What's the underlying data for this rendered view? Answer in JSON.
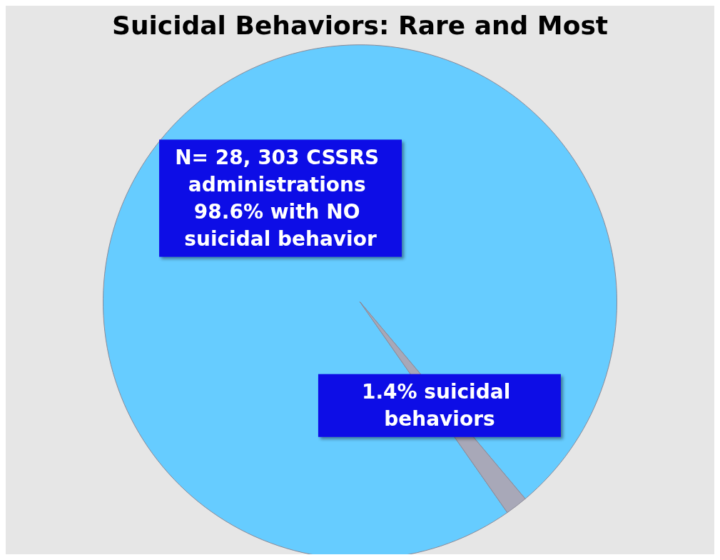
{
  "chart_data": {
    "type": "pie",
    "title": "Suicidal Behaviors: Rare and Most",
    "categories": [
      "N= 28, 303 CSSRS administrations 98.6% with NO suicidal behavior",
      "1.4% suicidal behaviors"
    ],
    "values": [
      98.6,
      1.4
    ],
    "colors": [
      "#66ccff",
      "#a8a8b8"
    ],
    "legend": false
  }
}
